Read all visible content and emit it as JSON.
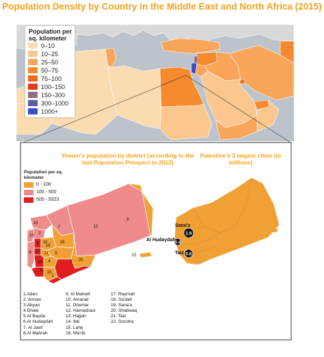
{
  "title": "Population Density by Country in the Middle East and North Africa (2015)",
  "colors": {
    "sea": "#bcc3cb",
    "outside": "#d9d9d9",
    "bin_0_10": "#fbdcb2",
    "bin_10_25": "#fcc78e",
    "bin_25_50": "#f9a65a",
    "bin_50_75": "#f58a2e",
    "bin_75_100": "#ef6a1c",
    "bin_100_150": "#e23c17",
    "bin_150_300": "#8e6b86",
    "bin_300_1000": "#5a5fa3",
    "bin_1000_plus": "#3b4fc2",
    "yemen_0_100": "#f0a035",
    "yemen_100_500": "#ef8b8b",
    "yemen_500_9323": "#e01e1e"
  },
  "legend": {
    "title": "Population per sq. kilometer",
    "items": [
      "0–10",
      "10–25",
      "25–50",
      "50–75",
      "75–100",
      "100–150",
      "150–300",
      "300–1000",
      "1000+"
    ]
  },
  "yemen_inset": {
    "title": "Yemen's population by district (according to the last Population Prospect in 2012)",
    "legend_title": "Population per sq. kilometer",
    "legend_items": [
      "0 - 100",
      "100 - 500",
      "500 - 9323"
    ],
    "district_labels": [
      "1",
      "2",
      "3",
      "4",
      "5",
      "6",
      "7",
      "8",
      "9",
      "10",
      "11",
      "12",
      "13",
      "14",
      "15",
      "16",
      "17",
      "18",
      "19",
      "20",
      "21",
      "22"
    ],
    "districts": [
      "1.Aden",
      "2.'Amran",
      "3.Abyan",
      "4.Dhale",
      "5.Al Bayda",
      "6.Al Hudaydah",
      "7. Al Jawf",
      "8.Al Mahrah",
      "9. Al Mahwit",
      "10. Amanat",
      "11. Dhamar",
      "12. Hamadraut",
      "13. Hajjah",
      "14. Ibb",
      "15. Lahij",
      "16. Ma'rib",
      "17. Raymah",
      "18. Sa'dah",
      "19. Sana'a",
      "20. Shabwaq",
      "21. Taiz",
      "22. Socotra"
    ]
  },
  "cities_inset": {
    "title": "Palestine's 3 largest cities (in millions)",
    "cities": [
      {
        "name": "Sana'a",
        "value": "1.9"
      },
      {
        "name": "Al Hudaydah",
        "value": "0.4"
      },
      {
        "name": "Taiz",
        "value": "0.6"
      }
    ]
  }
}
